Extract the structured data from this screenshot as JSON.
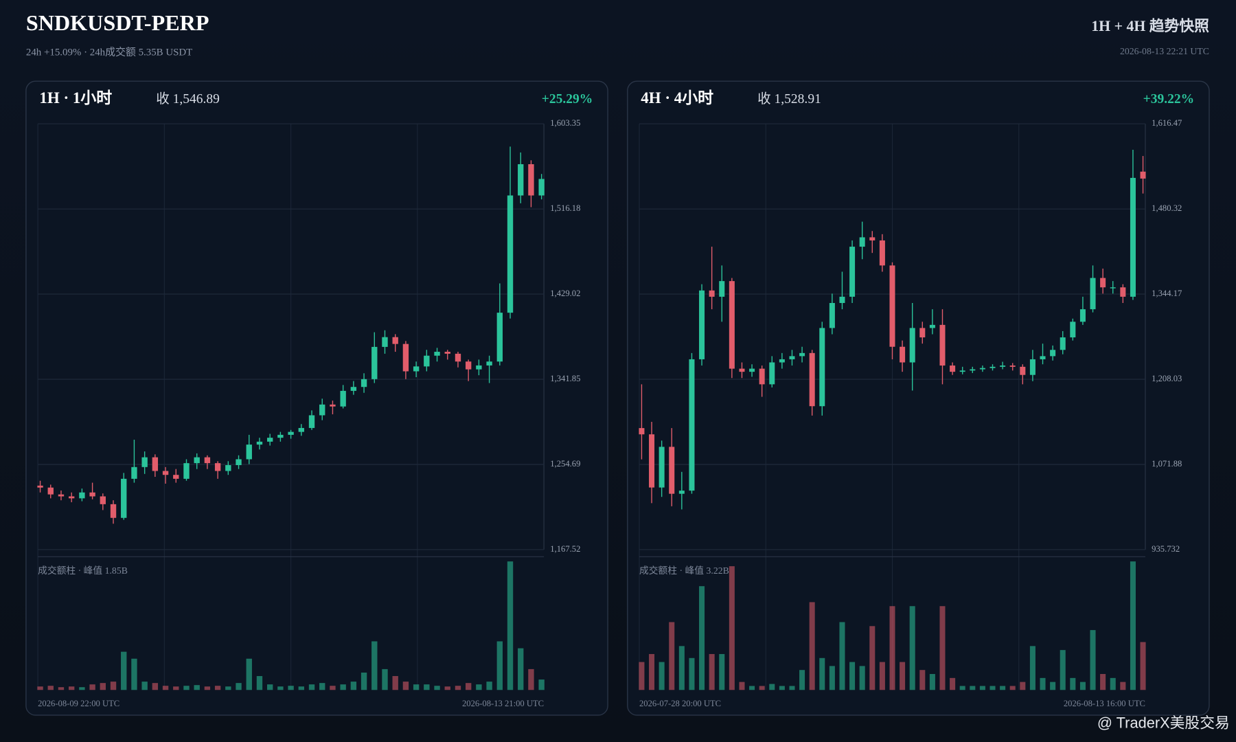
{
  "header": {
    "title": "SNDKUSDT-PERP",
    "subtitle": "24h +15.09% · 24h成交额 5.35B USDT",
    "right_title": "1H + 4H 趋势快照",
    "timestamp": "2026-08-13 22:21 UTC"
  },
  "watermark": "@ TraderX美股交易",
  "chart_data": [
    {
      "type": "candlestick",
      "title": "1H · 1小时",
      "close_label": "收 1,546.89",
      "change": "+25.29%",
      "volume_label": "成交额柱 · 峰值 1.85B",
      "x_start": "2026-08-09 22:00 UTC",
      "x_end": "2026-08-13 21:00 UTC",
      "up_color": "#2bc49b",
      "down_color": "#e25d6b",
      "grid": true,
      "ylim": [
        1167.52,
        1603.35
      ],
      "yticks": [
        {
          "value": 1167.52,
          "label": "1,167.52"
        },
        {
          "value": 1254.69,
          "label": "1,254.69"
        },
        {
          "value": 1341.85,
          "label": "1,341.85"
        },
        {
          "value": 1429.02,
          "label": "1,429.02"
        },
        {
          "value": 1516.18,
          "label": "1,516.18"
        },
        {
          "value": 1603.35,
          "label": "1,603.35"
        }
      ],
      "ohlc": [
        [
          1233,
          1238,
          1226,
          1231
        ],
        [
          1231,
          1234,
          1220,
          1224
        ],
        [
          1224,
          1228,
          1218,
          1222
        ],
        [
          1222,
          1226,
          1216,
          1220
        ],
        [
          1220,
          1230,
          1217,
          1226
        ],
        [
          1226,
          1236,
          1219,
          1222
        ],
        [
          1222,
          1225,
          1208,
          1214
        ],
        [
          1214,
          1218,
          1194,
          1200
        ],
        [
          1200,
          1246,
          1198,
          1240
        ],
        [
          1240,
          1280,
          1236,
          1252
        ],
        [
          1252,
          1268,
          1245,
          1262
        ],
        [
          1262,
          1265,
          1242,
          1248
        ],
        [
          1248,
          1252,
          1235,
          1244
        ],
        [
          1244,
          1250,
          1236,
          1240
        ],
        [
          1240,
          1260,
          1238,
          1256
        ],
        [
          1256,
          1266,
          1250,
          1262
        ],
        [
          1262,
          1264,
          1250,
          1256
        ],
        [
          1256,
          1258,
          1240,
          1248
        ],
        [
          1248,
          1258,
          1244,
          1254
        ],
        [
          1254,
          1264,
          1250,
          1260
        ],
        [
          1260,
          1285,
          1255,
          1275
        ],
        [
          1275,
          1282,
          1270,
          1278
        ],
        [
          1278,
          1286,
          1274,
          1282
        ],
        [
          1282,
          1288,
          1278,
          1285
        ],
        [
          1285,
          1290,
          1281,
          1288
        ],
        [
          1288,
          1296,
          1284,
          1292
        ],
        [
          1292,
          1310,
          1290,
          1305
        ],
        [
          1305,
          1322,
          1300,
          1316
        ],
        [
          1316,
          1320,
          1306,
          1314
        ],
        [
          1314,
          1336,
          1312,
          1330
        ],
        [
          1330,
          1340,
          1326,
          1334
        ],
        [
          1334,
          1348,
          1328,
          1342
        ],
        [
          1342,
          1390,
          1338,
          1375
        ],
        [
          1375,
          1392,
          1368,
          1385
        ],
        [
          1385,
          1388,
          1370,
          1378
        ],
        [
          1378,
          1381,
          1342,
          1350
        ],
        [
          1350,
          1360,
          1344,
          1355
        ],
        [
          1355,
          1372,
          1350,
          1366
        ],
        [
          1366,
          1374,
          1360,
          1370
        ],
        [
          1370,
          1372,
          1362,
          1368
        ],
        [
          1368,
          1370,
          1354,
          1360
        ],
        [
          1360,
          1362,
          1340,
          1352
        ],
        [
          1352,
          1362,
          1346,
          1356
        ],
        [
          1356,
          1366,
          1338,
          1360
        ],
        [
          1360,
          1440,
          1356,
          1410
        ],
        [
          1410,
          1580,
          1404,
          1530
        ],
        [
          1530,
          1574,
          1522,
          1562
        ],
        [
          1562,
          1566,
          1518,
          1530
        ],
        [
          1530,
          1552,
          1526,
          1546.89
        ]
      ],
      "volumes": [
        0.05,
        0.06,
        0.04,
        0.05,
        0.04,
        0.08,
        0.1,
        0.12,
        0.55,
        0.45,
        0.12,
        0.1,
        0.06,
        0.05,
        0.06,
        0.07,
        0.05,
        0.06,
        0.05,
        0.1,
        0.45,
        0.2,
        0.08,
        0.05,
        0.06,
        0.05,
        0.08,
        0.1,
        0.06,
        0.08,
        0.12,
        0.25,
        0.7,
        0.3,
        0.2,
        0.12,
        0.08,
        0.08,
        0.06,
        0.05,
        0.06,
        0.1,
        0.08,
        0.12,
        0.7,
        1.85,
        0.6,
        0.3,
        0.15
      ]
    },
    {
      "type": "candlestick",
      "title": "4H · 4小时",
      "close_label": "收 1,528.91",
      "change": "+39.22%",
      "volume_label": "成交额柱 · 峰值 3.22B",
      "x_start": "2026-07-28 20:00 UTC",
      "x_end": "2026-08-13 16:00 UTC",
      "up_color": "#2bc49b",
      "down_color": "#e25d6b",
      "grid": true,
      "ylim": [
        935.732,
        1616.47
      ],
      "yticks": [
        935.732,
        {
          "value": 1071.88,
          "label": "1,071.88"
        },
        {
          "value": 1208.03,
          "label": "1,208.03"
        },
        {
          "value": 1344.17,
          "label": "1,344.17"
        },
        {
          "value": 1480.32,
          "label": "1,480.32"
        },
        {
          "value": 1616.47,
          "label": "1,616.47"
        }
      ],
      "ohlc": [
        [
          1130,
          1200,
          1080,
          1120
        ],
        [
          1120,
          1140,
          1010,
          1035
        ],
        [
          1035,
          1110,
          1020,
          1100
        ],
        [
          1100,
          1130,
          1005,
          1025
        ],
        [
          1025,
          1060,
          1000,
          1030
        ],
        [
          1030,
          1250,
          1025,
          1240
        ],
        [
          1240,
          1360,
          1230,
          1350
        ],
        [
          1350,
          1420,
          1320,
          1340
        ],
        [
          1340,
          1390,
          1300,
          1365
        ],
        [
          1365,
          1370,
          1210,
          1225
        ],
        [
          1225,
          1235,
          1210,
          1220
        ],
        [
          1220,
          1232,
          1212,
          1225
        ],
        [
          1225,
          1230,
          1180,
          1200
        ],
        [
          1200,
          1245,
          1195,
          1235
        ],
        [
          1235,
          1250,
          1225,
          1240
        ],
        [
          1240,
          1255,
          1230,
          1245
        ],
        [
          1245,
          1260,
          1235,
          1250
        ],
        [
          1250,
          1255,
          1150,
          1165
        ],
        [
          1165,
          1300,
          1150,
          1290
        ],
        [
          1290,
          1345,
          1280,
          1330
        ],
        [
          1330,
          1380,
          1320,
          1340
        ],
        [
          1340,
          1430,
          1330,
          1420
        ],
        [
          1420,
          1460,
          1400,
          1435
        ],
        [
          1435,
          1445,
          1410,
          1430
        ],
        [
          1430,
          1440,
          1380,
          1390
        ],
        [
          1390,
          1395,
          1240,
          1260
        ],
        [
          1260,
          1270,
          1220,
          1235
        ],
        [
          1235,
          1330,
          1190,
          1290
        ],
        [
          1290,
          1300,
          1265,
          1275
        ],
        [
          1290,
          1320,
          1280,
          1295
        ],
        [
          1295,
          1320,
          1200,
          1230
        ],
        [
          1230,
          1235,
          1215,
          1220
        ],
        [
          1220,
          1228,
          1216,
          1222
        ],
        [
          1222,
          1228,
          1218,
          1224
        ],
        [
          1224,
          1230,
          1220,
          1226
        ],
        [
          1226,
          1232,
          1222,
          1228
        ],
        [
          1228,
          1236,
          1224,
          1230
        ],
        [
          1230,
          1234,
          1222,
          1228
        ],
        [
          1228,
          1232,
          1200,
          1215
        ],
        [
          1215,
          1255,
          1205,
          1240
        ],
        [
          1240,
          1265,
          1232,
          1245
        ],
        [
          1245,
          1262,
          1238,
          1255
        ],
        [
          1255,
          1285,
          1248,
          1275
        ],
        [
          1275,
          1305,
          1270,
          1300
        ],
        [
          1300,
          1340,
          1295,
          1320
        ],
        [
          1320,
          1390,
          1315,
          1370
        ],
        [
          1370,
          1385,
          1345,
          1355
        ],
        [
          1355,
          1365,
          1345,
          1355
        ],
        [
          1355,
          1360,
          1330,
          1340
        ],
        [
          1340,
          1575,
          1335,
          1530
        ],
        [
          1540,
          1565,
          1505,
          1528.91
        ]
      ],
      "volumes": [
        0.7,
        0.9,
        0.7,
        1.7,
        1.1,
        0.8,
        2.6,
        0.9,
        0.9,
        3.1,
        0.2,
        0.1,
        0.1,
        0.15,
        0.1,
        0.1,
        0.5,
        2.2,
        0.8,
        0.6,
        1.7,
        0.7,
        0.6,
        1.6,
        0.7,
        2.1,
        0.7,
        2.1,
        0.5,
        0.4,
        2.1,
        0.3,
        0.1,
        0.1,
        0.1,
        0.1,
        0.1,
        0.1,
        0.2,
        1.1,
        0.3,
        0.2,
        1.0,
        0.3,
        0.2,
        1.5,
        0.4,
        0.3,
        0.2,
        3.22,
        1.2
      ]
    }
  ]
}
